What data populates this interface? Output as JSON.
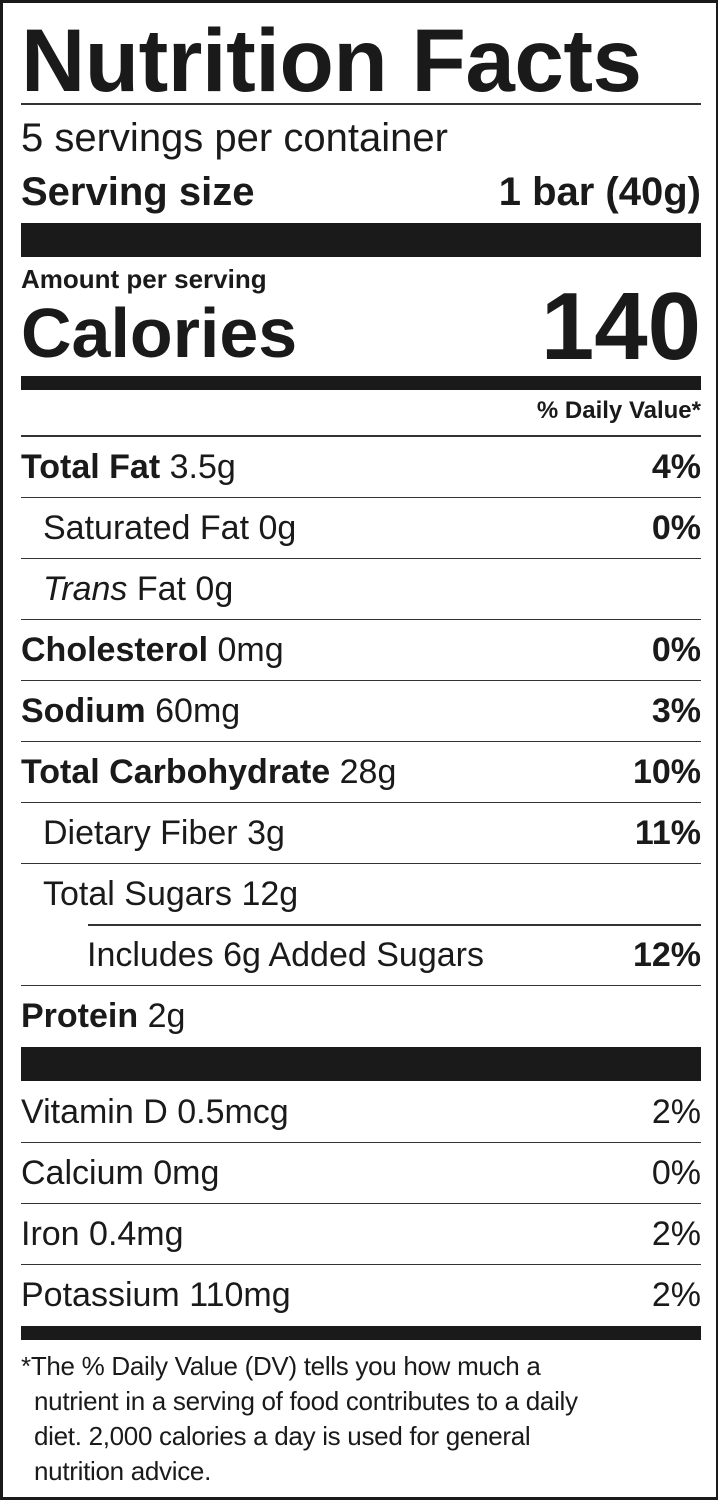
{
  "title": "Nutrition Facts",
  "servings_per_container": "5 servings per container",
  "serving_size": {
    "label": "Serving size",
    "value": "1 bar (40g)"
  },
  "amount_per_serving": "Amount per serving",
  "calories": {
    "label": "Calories",
    "value": "140"
  },
  "daily_value_header": "% Daily Value*",
  "nutrients": [
    {
      "name": "Total Fat",
      "amount": "3.5g",
      "dv": "4%"
    },
    {
      "name": "Saturated Fat",
      "amount": "0g",
      "dv": "0%"
    },
    {
      "name": "Trans",
      "name_rest": "Fat",
      "amount": "0g",
      "dv": ""
    },
    {
      "name": "Cholesterol",
      "amount": "0mg",
      "dv": "0%"
    },
    {
      "name": "Sodium",
      "amount": "60mg",
      "dv": "3%"
    },
    {
      "name": "Total Carbohydrate",
      "amount": "28g",
      "dv": "10%"
    },
    {
      "name": "Dietary Fiber",
      "amount": "3g",
      "dv": "11%"
    },
    {
      "name": "Total Sugars",
      "amount": "12g",
      "dv": ""
    },
    {
      "name": "Includes 6g Added Sugars",
      "amount": "",
      "dv": "12%"
    },
    {
      "name": "Protein",
      "amount": "2g",
      "dv": ""
    }
  ],
  "vitamins": [
    {
      "name": "Vitamin D",
      "amount": "0.5mcg",
      "dv": "2%"
    },
    {
      "name": "Calcium",
      "amount": "0mg",
      "dv": "0%"
    },
    {
      "name": "Iron",
      "amount": "0.4mg",
      "dv": "2%"
    },
    {
      "name": "Potassium",
      "amount": "110mg",
      "dv": "2%"
    }
  ],
  "footnote": {
    "line1": "*The % Daily Value (DV) tells you how much a",
    "line2": "nutrient in a serving of food contributes to a daily",
    "line3": "diet. 2,000 calories a day is used for general",
    "line4": "nutrition advice."
  }
}
